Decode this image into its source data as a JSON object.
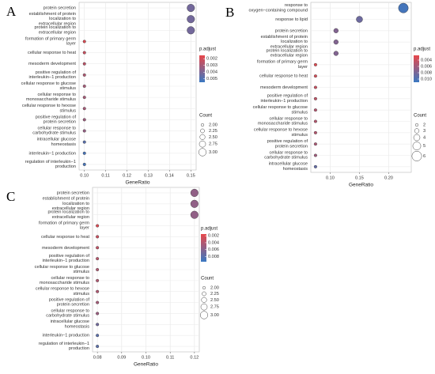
{
  "chart_data": [
    {
      "type": "dotplot",
      "panel_label": "A",
      "x_label": "GeneRatio",
      "color_label": "p.adjust",
      "size_label": "Count",
      "colormap": [
        "#e8474a",
        "#3a78c2"
      ],
      "categories": [
        "protein secretion",
        "establishment of protein\nlocalization to\nextracellular region",
        "protein localization to\nextracellular region",
        "formation of primary germ\nlayer",
        "cellular response to heat",
        "mesoderm development",
        "positive regulation of\ninterleukin−1 production",
        "cellular response to glucose\nstimulus",
        "cellular response to\nmonosaccharide stimulus",
        "cellular response to hexose\nstimulus",
        "positive regulation of\nprotein secretion",
        "cellular response to\ncarbohydrate stimulus",
        "intracellular glucose\nhomeostasis",
        "interleukin−1 production",
        "regulation of interleukin−1\nproduction"
      ],
      "values": [
        0.15,
        0.15,
        0.15,
        0.1,
        0.1,
        0.1,
        0.1,
        0.1,
        0.1,
        0.1,
        0.1,
        0.1,
        0.1,
        0.1,
        0.1
      ],
      "color_values": [
        0.0042,
        0.0042,
        0.0042,
        0.0018,
        0.0022,
        0.0025,
        0.0028,
        0.003,
        0.003,
        0.003,
        0.0032,
        0.0034,
        0.0048,
        0.0052,
        0.0052
      ],
      "size_values": [
        3,
        3,
        3,
        2,
        2,
        2,
        2,
        2,
        2,
        2,
        2,
        2,
        2,
        2,
        2
      ],
      "xlim": [
        0.0975,
        0.1525
      ],
      "xticks": [
        {
          "value": 0.1,
          "label": "0.10"
        },
        0.11,
        0.12,
        0.13,
        0.14,
        0.15
      ],
      "clim": [
        0.0015,
        0.0055
      ],
      "cticks": [
        0.002,
        0.003,
        0.004,
        0.005
      ],
      "sticks": [
        {
          "value": 2,
          "label": "2.00"
        },
        2.25,
        {
          "value": 2.5,
          "label": "2.50"
        },
        2.75,
        {
          "value": 3,
          "label": "3.00"
        }
      ],
      "grid": true
    },
    {
      "type": "dotplot",
      "panel_label": "B",
      "x_label": "GeneRatio",
      "color_label": "p.adjust",
      "size_label": "Count",
      "colormap": [
        "#e8474a",
        "#3a78c2"
      ],
      "categories": [
        "response to\noxygen−containing compound",
        "response to lipid",
        "protein secretion",
        "establishment of protein\nlocalization to\nextracellular region",
        "protein localization to\nextracellular region",
        "formation of primary germ\nlayer",
        "cellular response to heat",
        "mesoderm development",
        "positive regulation of\ninterleukin−1 production",
        "cellular response to glucose\nstimulus",
        "cellular response to\nmonosaccharide stimulus",
        "cellular response to hexose\nstimulus",
        "positive regulation of\nprotein secretion",
        "cellular response to\ncarbohydrate stimulus",
        "intracellular glucose\nhomeostasis"
      ],
      "values": [
        0.225,
        0.15,
        0.11,
        0.11,
        0.11,
        0.075,
        0.075,
        0.075,
        0.075,
        0.075,
        0.075,
        0.075,
        0.075,
        0.075,
        0.075
      ],
      "color_values": [
        0.0105,
        0.0085,
        0.0075,
        0.0075,
        0.0075,
        0.003,
        0.0035,
        0.004,
        0.0045,
        0.005,
        0.005,
        0.005,
        0.0055,
        0.006,
        0.009
      ],
      "size_values": [
        6,
        4,
        3,
        3,
        3,
        2,
        2,
        2,
        2,
        2,
        2,
        2,
        2,
        2,
        2
      ],
      "xlim": [
        0.067,
        0.2385
      ],
      "xticks": [
        {
          "value": 0.1,
          "label": "0.10"
        },
        0.15,
        {
          "value": 0.2,
          "label": "0.20"
        }
      ],
      "clim": [
        0.0025,
        0.011
      ],
      "cticks": [
        0.004,
        0.006,
        0.008,
        {
          "value": 0.01,
          "label": "0.010"
        }
      ],
      "sticks": [
        2,
        3,
        4,
        5,
        6
      ],
      "grid": true
    },
    {
      "type": "dotplot",
      "panel_label": "C",
      "x_label": "GeneRatio",
      "color_label": "p.adjust",
      "size_label": "Count",
      "colormap": [
        "#e8474a",
        "#3a78c2"
      ],
      "categories": [
        "protein secretion",
        "establishment of protein\nlocalization to\nextracellular region",
        "protein localization to\nextracellular region",
        "formation of primary germ\nlayer",
        "cellular response to heat",
        "mesoderm development",
        "positive regulation of\ninterleukin−1 production",
        "cellular response to glucose\nstimulus",
        "cellular response to\nmonosaccharide stimulus",
        "cellular response to hexose\nstimulus",
        "positive regulation of\nprotein secretion",
        "cellular response to\ncarbohydrate stimulus",
        "intracellular glucose\nhomeostasis",
        "interleukin−1 production",
        "regulation of interleukin−1\nproduction"
      ],
      "values": [
        0.12,
        0.12,
        0.12,
        0.08,
        0.08,
        0.08,
        0.08,
        0.08,
        0.08,
        0.08,
        0.08,
        0.08,
        0.08,
        0.08,
        0.08
      ],
      "color_values": [
        0.0055,
        0.0055,
        0.0055,
        0.002,
        0.0028,
        0.0032,
        0.0036,
        0.004,
        0.004,
        0.004,
        0.0045,
        0.005,
        0.007,
        0.008,
        0.008
      ],
      "size_values": [
        3,
        3,
        3,
        2,
        2,
        2,
        2,
        2,
        2,
        2,
        2,
        2,
        2,
        2,
        2
      ],
      "xlim": [
        0.078,
        0.122
      ],
      "xticks": [
        0.08,
        0.09,
        {
          "value": 0.1,
          "label": "0.10"
        },
        0.11,
        0.12
      ],
      "clim": [
        0.0015,
        0.0095
      ],
      "cticks": [
        0.002,
        0.004,
        0.006,
        0.008
      ],
      "sticks": [
        {
          "value": 2,
          "label": "2.00"
        },
        2.25,
        {
          "value": 2.5,
          "label": "2.50"
        },
        2.75,
        {
          "value": 3,
          "label": "3.00"
        }
      ],
      "grid": true
    }
  ]
}
